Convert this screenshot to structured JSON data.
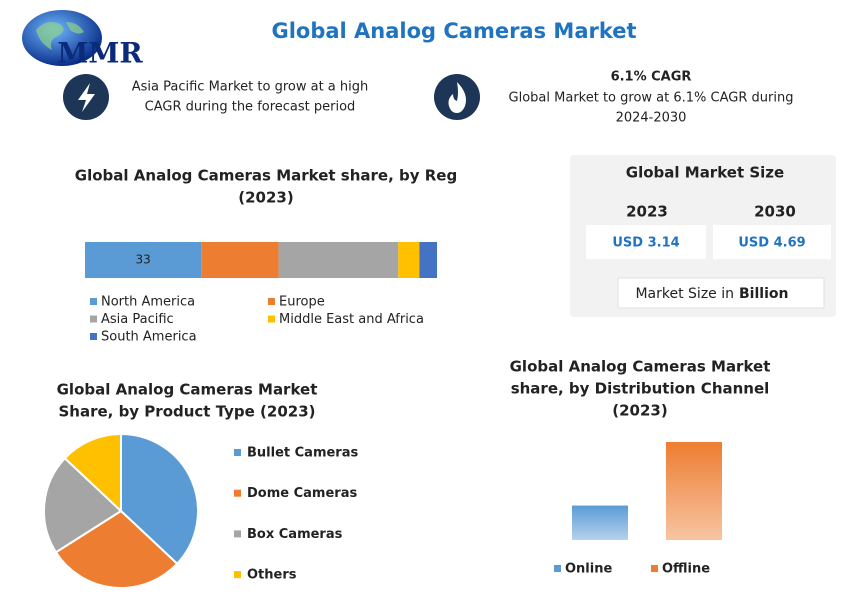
{
  "header": {
    "logo": "MMR",
    "title": "Global Analog Cameras Market"
  },
  "highlights": [
    {
      "lines": [
        "Asia Pacific Market to grow at a high",
        "CAGR during the forecast period"
      ]
    },
    {
      "heading": "6.1% CAGR",
      "lines": [
        "Global Market to grow at 6.1% CAGR during",
        "2024-2030"
      ]
    }
  ],
  "market_size": {
    "title": "Global Market Size",
    "columns": [
      {
        "year": "2023",
        "value": "USD 3.14"
      },
      {
        "year": "2030",
        "value": "USD 4.69"
      }
    ],
    "note": "Market Size in",
    "note_bold": "Billion"
  },
  "chart_data": [
    {
      "type": "stacked_bar",
      "title": [
        "Global Analog Cameras Market share, by Reg",
        "(2023)"
      ],
      "series": [
        {
          "name": "North America",
          "color": "#5b9bd5",
          "values": [
            33
          ],
          "value_labels": [
            "33"
          ]
        },
        {
          "name": "Europe",
          "color": "#ed7d31",
          "values": [
            22
          ]
        },
        {
          "name": "Asia Pacific",
          "color": "#a5a5a5",
          "values": [
            34
          ]
        },
        {
          "name": "Middle East and Africa",
          "color": "#ffc000",
          "values": [
            6
          ]
        },
        {
          "name": "South America",
          "color": "#4472c4",
          "values": [
            5
          ]
        }
      ]
    },
    {
      "type": "pie",
      "title": [
        "Global Analog Cameras Market",
        "Share, by Product Type (2023)"
      ],
      "categories": [
        "Bullet Cameras",
        "Dome Cameras",
        "Box Cameras",
        "Others"
      ],
      "values": [
        37,
        29,
        21,
        13
      ],
      "colors": [
        "#5b9bd5",
        "#ed7d31",
        "#a5a5a5",
        "#ffc000"
      ]
    },
    {
      "type": "bar",
      "title": [
        "Global Analog Cameras Market",
        "share, by Distribution Channel",
        "(2023)"
      ],
      "categories": [
        "Online",
        "Offline"
      ],
      "values": [
        26,
        74
      ],
      "colors": [
        "#5b9bd5",
        "#ed7d31"
      ]
    }
  ]
}
